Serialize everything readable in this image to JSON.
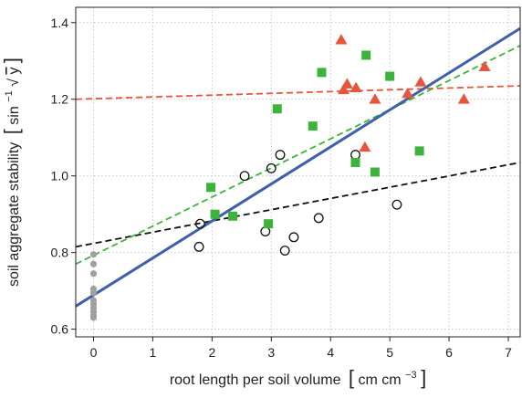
{
  "chart_data": {
    "type": "scatter",
    "xlabel_main": "root length per soil volume",
    "xlabel_unit_base": "cm cm",
    "xlabel_unit_exp": "−3",
    "ylabel_main": "soil aggregate stability",
    "ylabel_unit_base": "sin",
    "ylabel_unit_exp": "−1",
    "ylabel_unit_arg": "y",
    "xlim": [
      -0.3,
      7.2
    ],
    "ylim": [
      0.58,
      1.44
    ],
    "xticks": [
      0,
      1,
      2,
      3,
      4,
      5,
      6,
      7
    ],
    "yticks": [
      0.6,
      0.8,
      1.0,
      1.2,
      1.4
    ],
    "xtick_labels": [
      "0",
      "1",
      "2",
      "3",
      "4",
      "5",
      "6",
      "7"
    ],
    "ytick_labels": [
      "0.6",
      "0.8",
      "1.0",
      "1.2",
      "1.4"
    ],
    "grid": true,
    "series": [
      {
        "marker": "circle-filled",
        "color": "#a0a0a0",
        "x": [
          0,
          0,
          0,
          0,
          0,
          0,
          0,
          0,
          0,
          0,
          0
        ],
        "y": [
          0.795,
          0.77,
          0.745,
          0.705,
          0.695,
          0.675,
          0.665,
          0.655,
          0.645,
          0.635,
          0.63
        ]
      },
      {
        "marker": "circle-open",
        "color": "#111111",
        "x": [
          1.8,
          1.78,
          2.55,
          2.9,
          3.0,
          3.15,
          3.23,
          3.38,
          3.8,
          4.42,
          5.12
        ],
        "y": [
          0.875,
          0.815,
          1.0,
          0.855,
          1.02,
          1.055,
          0.805,
          0.84,
          0.89,
          1.055,
          0.925
        ]
      },
      {
        "marker": "square",
        "color": "#3cb43c",
        "x": [
          1.98,
          2.05,
          2.35,
          2.95,
          3.1,
          3.7,
          3.85,
          4.42,
          4.6,
          4.75,
          5.0,
          5.5
        ],
        "y": [
          0.97,
          0.9,
          0.895,
          0.875,
          1.175,
          1.13,
          1.27,
          1.035,
          1.315,
          1.01,
          1.26,
          1.065
        ]
      },
      {
        "marker": "triangle",
        "color": "#e8553c",
        "x": [
          4.18,
          4.22,
          4.28,
          4.43,
          4.58,
          4.75,
          5.3,
          5.52,
          6.25,
          6.6
        ],
        "y": [
          1.355,
          1.225,
          1.24,
          1.23,
          1.075,
          1.2,
          1.215,
          1.245,
          1.2,
          1.285
        ]
      }
    ],
    "trend_lines": [
      {
        "style": "dashed",
        "color": "#e8553c",
        "x": [
          -0.3,
          7.2
        ],
        "y": [
          1.2,
          1.235
        ]
      },
      {
        "style": "dashed",
        "color": "#111111",
        "x": [
          -0.3,
          7.2
        ],
        "y": [
          0.815,
          1.035
        ]
      },
      {
        "style": "dashed",
        "color": "#3cb43c",
        "x": [
          -0.3,
          7.2
        ],
        "y": [
          0.77,
          1.34
        ]
      },
      {
        "style": "solid",
        "color": "#4060a8",
        "x": [
          -0.3,
          7.2
        ],
        "y": [
          0.66,
          1.385
        ]
      }
    ]
  }
}
